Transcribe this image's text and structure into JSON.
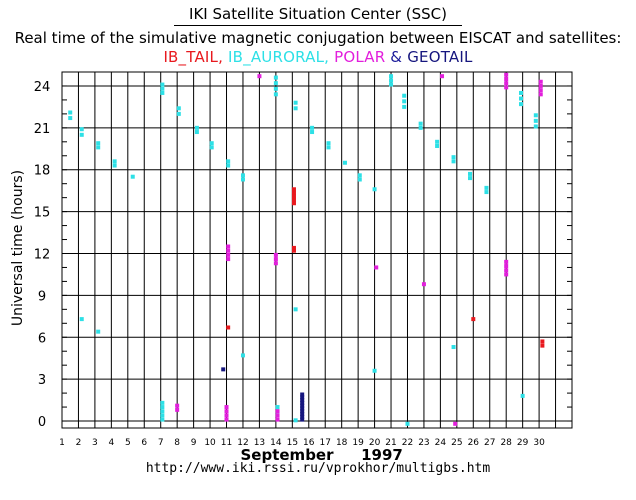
{
  "header": {
    "title": "IKI Satellite Situation Center (SSC)",
    "subtitle": "Real time of the simulative magnetic conjugation between EISCAT and satellites:",
    "legend_items": [
      {
        "label": "IB_TAIL,",
        "color": "#e8191e"
      },
      {
        "label": " IB_AURORAL,",
        "color": "#2de0e6"
      },
      {
        "label": " POLAR",
        "color": "#e21fdc"
      },
      {
        "label": " & ",
        "color": "#1a1a9a"
      },
      {
        "label": "GEOTAIL",
        "color": "#16167e"
      }
    ]
  },
  "footer": {
    "url": "http://www.iki.rssi.ru/vprokhor/multigbs.htm"
  },
  "chart_data": {
    "type": "scatter",
    "ylabel": "Universal time  (hours)",
    "xlabel_month": "September",
    "xlabel_year": "1997",
    "xlim": [
      1,
      32
    ],
    "ylim": [
      -0.5,
      25
    ],
    "x_ticks": [
      1,
      2,
      3,
      4,
      5,
      6,
      7,
      8,
      9,
      10,
      11,
      12,
      13,
      14,
      15,
      16,
      17,
      18,
      19,
      20,
      21,
      22,
      23,
      24,
      25,
      26,
      27,
      28,
      29,
      30
    ],
    "y_ticks": [
      0,
      3,
      6,
      9,
      12,
      15,
      18,
      21,
      24
    ],
    "grid": true,
    "series": [
      {
        "name": "IB_TAIL",
        "color": "#e8191e",
        "points": [
          [
            11.1,
            6.7
          ],
          [
            15.1,
            15.6
          ],
          [
            15.1,
            15.85
          ],
          [
            15.1,
            16.1
          ],
          [
            15.1,
            16.35
          ],
          [
            15.1,
            16.6
          ],
          [
            15.1,
            12.2
          ],
          [
            15.1,
            12.4
          ],
          [
            26.0,
            7.3
          ],
          [
            30.2,
            5.4
          ],
          [
            30.2,
            5.7
          ]
        ]
      },
      {
        "name": "IB_AURORAL",
        "color": "#2de0e6",
        "points": [
          [
            1.5,
            21.7
          ],
          [
            1.5,
            22.1
          ],
          [
            2.2,
            20.5
          ],
          [
            2.2,
            20.9
          ],
          [
            2.2,
            7.3
          ],
          [
            3.2,
            19.6
          ],
          [
            3.2,
            19.9
          ],
          [
            3.2,
            6.4
          ],
          [
            4.2,
            18.3
          ],
          [
            4.2,
            18.6
          ],
          [
            5.3,
            17.5
          ],
          [
            7.1,
            23.5
          ],
          [
            7.1,
            23.8
          ],
          [
            7.1,
            24.1
          ],
          [
            7.1,
            0.1
          ],
          [
            7.1,
            0.4
          ],
          [
            7.1,
            0.7
          ],
          [
            7.1,
            1.0
          ],
          [
            7.1,
            1.3
          ],
          [
            8.1,
            22.0
          ],
          [
            8.1,
            22.4
          ],
          [
            9.2,
            20.7
          ],
          [
            9.2,
            21.0
          ],
          [
            10.1,
            19.6
          ],
          [
            10.1,
            19.9
          ],
          [
            11.1,
            18.3
          ],
          [
            11.1,
            18.6
          ],
          [
            12.0,
            17.3
          ],
          [
            12.0,
            17.6
          ],
          [
            12.0,
            4.7
          ],
          [
            14.0,
            23.4
          ],
          [
            14.0,
            23.8
          ],
          [
            14.0,
            24.2
          ],
          [
            14.0,
            24.6
          ],
          [
            14.1,
            0.7
          ],
          [
            14.1,
            1.0
          ],
          [
            15.2,
            22.4
          ],
          [
            15.2,
            22.8
          ],
          [
            15.2,
            8.0
          ],
          [
            15.2,
            0.05
          ],
          [
            16.2,
            20.7
          ],
          [
            16.2,
            21.0
          ],
          [
            17.2,
            19.6
          ],
          [
            17.2,
            19.9
          ],
          [
            18.2,
            18.5
          ],
          [
            19.1,
            17.3
          ],
          [
            19.1,
            17.6
          ],
          [
            20.0,
            16.6
          ],
          [
            20.0,
            3.6
          ],
          [
            21.0,
            24.1
          ],
          [
            21.0,
            24.4
          ],
          [
            21.0,
            24.7
          ],
          [
            21.8,
            22.5
          ],
          [
            21.8,
            22.9
          ],
          [
            21.8,
            23.3
          ],
          [
            22.0,
            -0.2
          ],
          [
            22.8,
            21.0
          ],
          [
            22.8,
            21.3
          ],
          [
            23.8,
            19.7
          ],
          [
            23.8,
            20.0
          ],
          [
            24.8,
            18.6
          ],
          [
            24.8,
            18.9
          ],
          [
            24.8,
            5.3
          ],
          [
            25.8,
            17.4
          ],
          [
            25.8,
            17.7
          ],
          [
            26.8,
            16.4
          ],
          [
            26.8,
            16.7
          ],
          [
            28.9,
            22.7
          ],
          [
            28.9,
            23.1
          ],
          [
            28.9,
            23.5
          ],
          [
            29.8,
            21.1
          ],
          [
            29.8,
            21.5
          ],
          [
            29.8,
            21.9
          ],
          [
            29.0,
            1.8
          ]
        ]
      },
      {
        "name": "POLAR",
        "color": "#e21fdc",
        "points": [
          [
            8.0,
            0.8
          ],
          [
            8.0,
            1.1
          ],
          [
            11.0,
            0.1
          ],
          [
            11.0,
            0.4
          ],
          [
            11.0,
            0.7
          ],
          [
            11.0,
            1.0
          ],
          [
            11.1,
            11.6
          ],
          [
            11.1,
            11.9
          ],
          [
            11.1,
            12.2
          ],
          [
            11.1,
            12.5
          ],
          [
            13.0,
            24.7
          ],
          [
            14.0,
            11.3
          ],
          [
            14.0,
            11.6
          ],
          [
            14.0,
            11.9
          ],
          [
            14.1,
            0.1
          ],
          [
            14.1,
            0.4
          ],
          [
            14.1,
            0.7
          ],
          [
            20.1,
            11.0
          ],
          [
            23.0,
            9.8
          ],
          [
            24.1,
            24.7
          ],
          [
            24.9,
            -0.2
          ],
          [
            28.0,
            10.5
          ],
          [
            28.0,
            10.8
          ],
          [
            28.0,
            11.1
          ],
          [
            28.0,
            11.4
          ],
          [
            28.0,
            23.9
          ],
          [
            28.0,
            24.2
          ],
          [
            28.0,
            24.5
          ],
          [
            28.0,
            24.8
          ],
          [
            30.1,
            23.4
          ],
          [
            30.1,
            23.7
          ],
          [
            30.1,
            24.0
          ],
          [
            30.1,
            24.3
          ]
        ]
      },
      {
        "name": "GEOTAIL",
        "color": "#16167e",
        "points": [
          [
            10.8,
            3.7
          ],
          [
            15.6,
            0.1
          ],
          [
            15.6,
            0.3
          ],
          [
            15.6,
            0.5
          ],
          [
            15.6,
            0.7
          ],
          [
            15.6,
            0.9
          ],
          [
            15.6,
            1.1
          ],
          [
            15.6,
            1.3
          ],
          [
            15.6,
            1.5
          ],
          [
            15.6,
            1.7
          ],
          [
            15.6,
            1.9
          ]
        ]
      }
    ]
  }
}
